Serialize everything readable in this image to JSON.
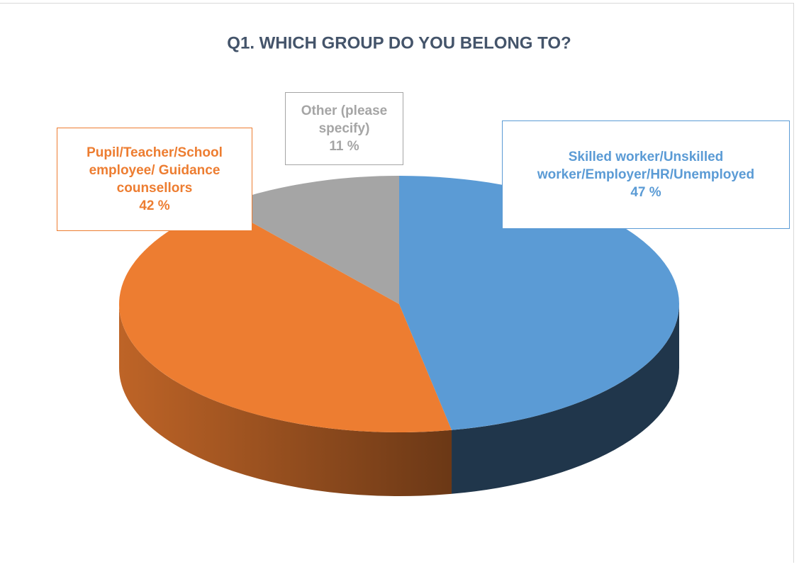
{
  "chart_data": {
    "type": "pie3d",
    "title": "Q1. WHICH GROUP DO YOU BELONG TO?",
    "categories": [
      "Skilled worker/Unskilled worker/Employer/HR/Unemployed",
      "Pupil/Teacher/School employee/ Guidance counsellors",
      "Other (please specify)"
    ],
    "values": [
      47,
      42,
      11
    ],
    "value_labels": [
      "47 %",
      "42 %",
      "11 %"
    ],
    "colors": [
      "#5b9bd5",
      "#ed7d31",
      "#a5a5a5"
    ]
  }
}
